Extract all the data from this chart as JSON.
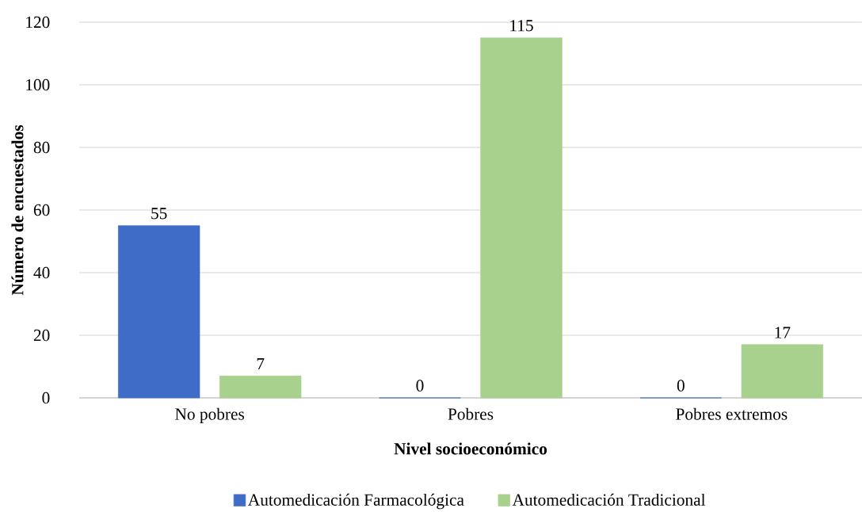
{
  "chart_data": {
    "type": "bar",
    "xlabel": "Nivel socioeconómico",
    "ylabel": "Número de encuestados",
    "categories": [
      "No pobres",
      "Pobres",
      "Pobres extremos"
    ],
    "series": [
      {
        "name": "Automedicación Farmacológica",
        "color": "#3e6cc6",
        "values": [
          55,
          0,
          0
        ]
      },
      {
        "name": "Automedicación Tradicional",
        "color": "#a9d18e",
        "values": [
          7,
          115,
          17
        ]
      }
    ],
    "ylim": [
      0,
      120
    ],
    "yticks": [
      0,
      20,
      40,
      60,
      80,
      100,
      120
    ],
    "grid": "y",
    "legend": "bottom",
    "data_labels": true
  }
}
